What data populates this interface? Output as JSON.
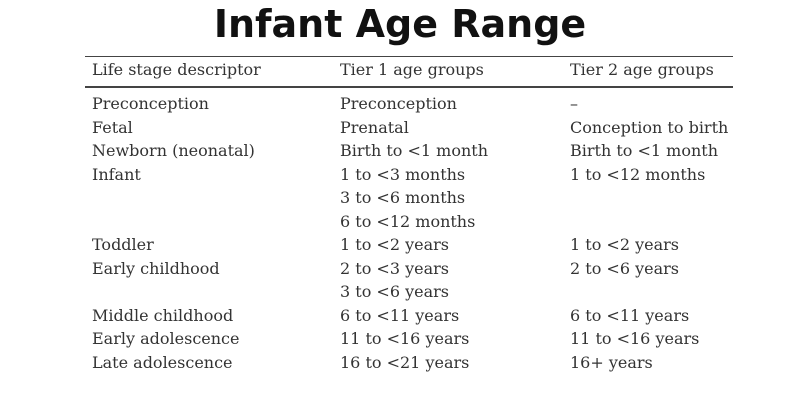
{
  "header": {
    "title": "Infant Age Range"
  },
  "table": {
    "columns": [
      "Life stage descriptor",
      "Tier 1 age groups",
      "Tier 2 age groups"
    ],
    "rows": [
      [
        [
          "Preconception"
        ],
        [
          "Preconception"
        ],
        [
          "–"
        ]
      ],
      [
        [
          "Fetal"
        ],
        [
          "Prenatal"
        ],
        [
          "Conception to birth"
        ]
      ],
      [
        [
          "Newborn (neonatal)"
        ],
        [
          "Birth to <1 month"
        ],
        [
          "Birth to <1 month"
        ]
      ],
      [
        [
          "Infant"
        ],
        [
          "1 to <3 months",
          "3 to <6 months",
          "6 to <12 months"
        ],
        [
          "1 to <12 months"
        ]
      ],
      [
        [
          "Toddler"
        ],
        [
          "1 to <2 years"
        ],
        [
          "1 to <2 years"
        ]
      ],
      [
        [
          "Early childhood"
        ],
        [
          "2 to <3 years",
          "3 to <6 years"
        ],
        [
          "2 to <6 years"
        ]
      ],
      [
        [
          "Middle childhood"
        ],
        [
          "6 to <11 years"
        ],
        [
          "6 to <11 years"
        ]
      ],
      [
        [
          "Early adolescence"
        ],
        [
          "11 to <16 years"
        ],
        [
          "11 to <16 years"
        ]
      ],
      [
        [
          "Late adolescence"
        ],
        [
          "16 to <21 years"
        ],
        [
          "16+ years"
        ]
      ]
    ]
  }
}
